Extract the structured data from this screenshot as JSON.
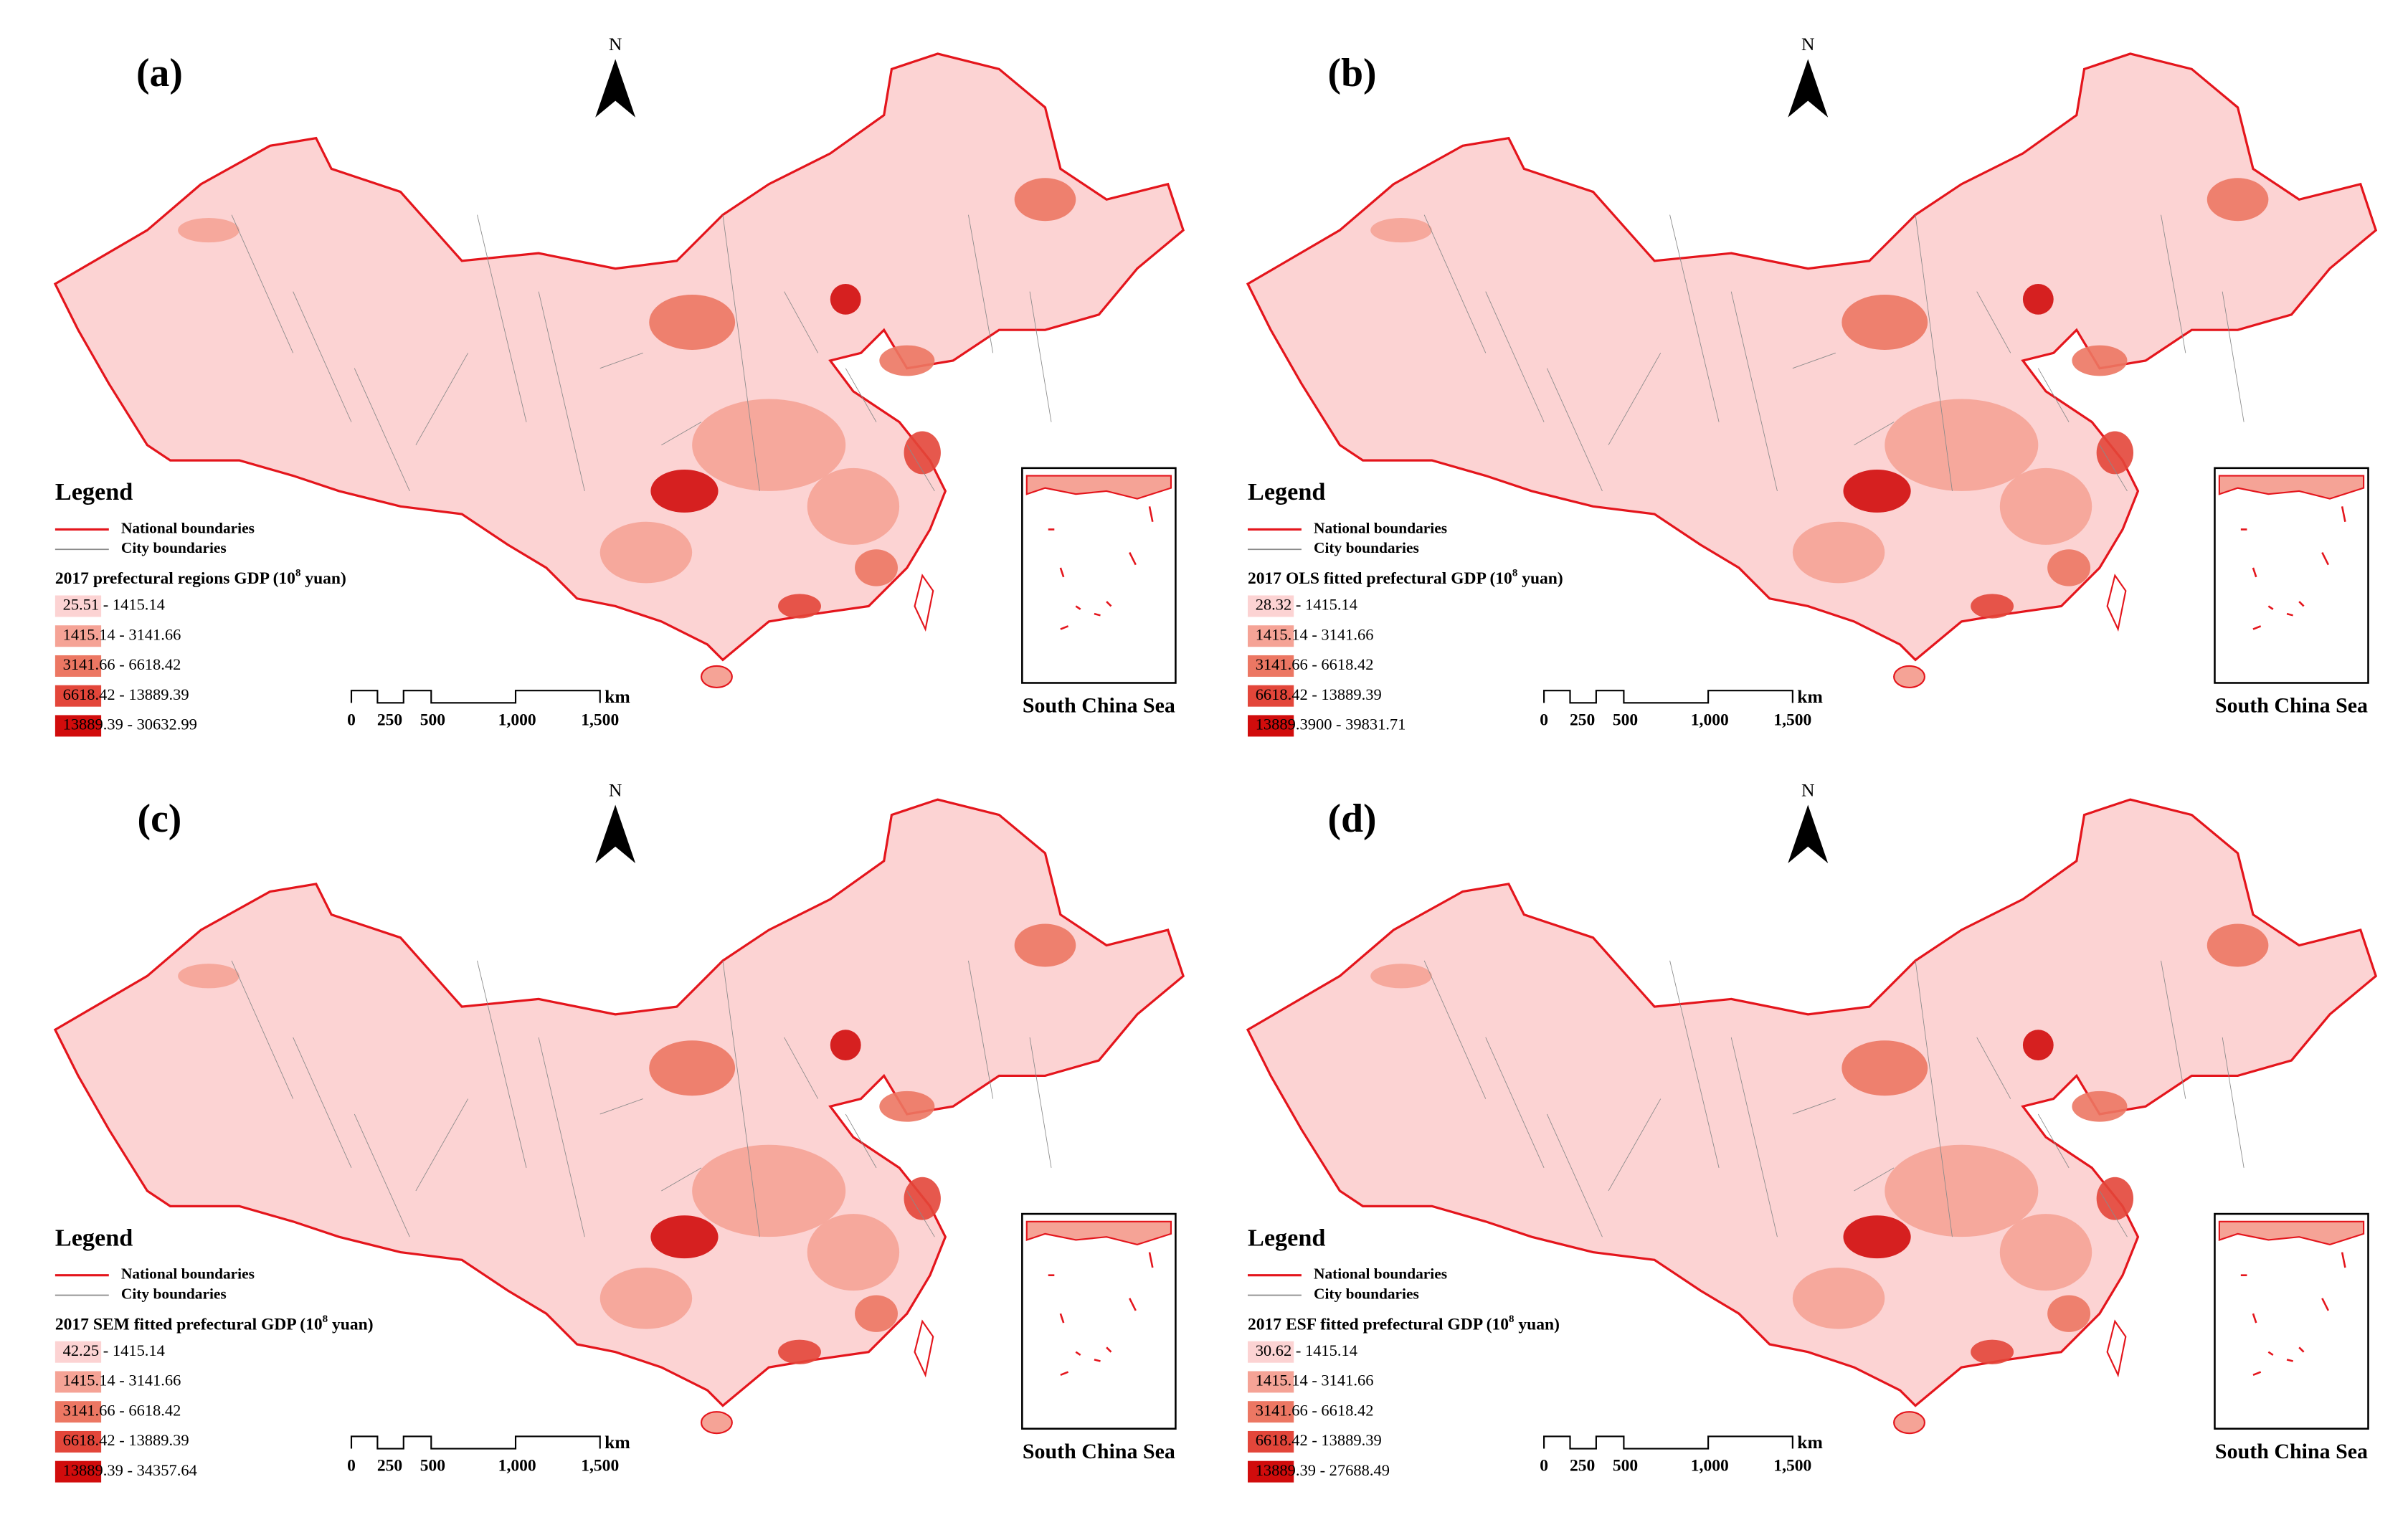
{
  "panels": [
    {
      "label": "(a)",
      "north": "N",
      "legend_title": "Legend",
      "boundaries": [
        "National boundaries",
        "City boundaries"
      ],
      "variable": {
        "before": "2017 prefectural regions GDP (10",
        "sup": "8",
        "after": " yuan)"
      },
      "classes": [
        "25.51 - 1415.14",
        "1415.14 - 3141.66",
        "3141.66 - 6618.42",
        "6618.42 - 13889.39",
        "13889.39 - 30632.99"
      ],
      "scale_labels": [
        "0",
        "250",
        "500",
        "1,000",
        "1,500"
      ],
      "scale_unit": "km",
      "inset": "South China Sea"
    },
    {
      "label": "(b)",
      "north": "N",
      "legend_title": "Legend",
      "boundaries": [
        "National boundaries",
        "City boundaries"
      ],
      "variable": {
        "before": "2017 OLS fitted prefectural GDP (10",
        "sup": "8",
        "after": " yuan)"
      },
      "classes": [
        "28.32 - 1415.14",
        "1415.14 - 3141.66",
        "3141.66 - 6618.42",
        "6618.42 - 13889.39",
        "13889.3900 - 39831.71"
      ],
      "scale_labels": [
        "0",
        "250",
        "500",
        "1,000",
        "1,500"
      ],
      "scale_unit": "km",
      "inset": "South China Sea"
    },
    {
      "label": "(c)",
      "north": "N",
      "legend_title": "Legend",
      "boundaries": [
        "National boundaries",
        "City boundaries"
      ],
      "variable": {
        "before": "2017 SEM fitted prefectural GDP (10",
        "sup": "8",
        "after": " yuan)"
      },
      "classes": [
        "42.25 - 1415.14",
        "1415.14 - 3141.66",
        "3141.66 - 6618.42",
        "6618.42 - 13889.39",
        "13889.39 - 34357.64"
      ],
      "scale_labels": [
        "0",
        "250",
        "500",
        "1,000",
        "1,500"
      ],
      "scale_unit": "km",
      "inset": "South China Sea"
    },
    {
      "label": "(d)",
      "north": "N",
      "legend_title": "Legend",
      "boundaries": [
        "National boundaries",
        "City boundaries"
      ],
      "variable": {
        "before": "2017 ESF fitted prefectural GDP (10",
        "sup": "8",
        "after": " yuan)"
      },
      "classes": [
        "30.62 - 1415.14",
        "1415.14 - 3141.66",
        "3141.66 - 6618.42",
        "6618.42 - 13889.39",
        "13889.39 - 27688.49"
      ],
      "scale_labels": [
        "0",
        "250",
        "500",
        "1,000",
        "1,500"
      ],
      "scale_unit": "km",
      "inset": "South China Sea"
    }
  ],
  "class_colors": [
    "#fcd3d3",
    "#f5a396",
    "#ec7763",
    "#e3463a",
    "#d10c0c"
  ],
  "boundary_colors": [
    "#e4151c",
    "#8a8a8a"
  ]
}
